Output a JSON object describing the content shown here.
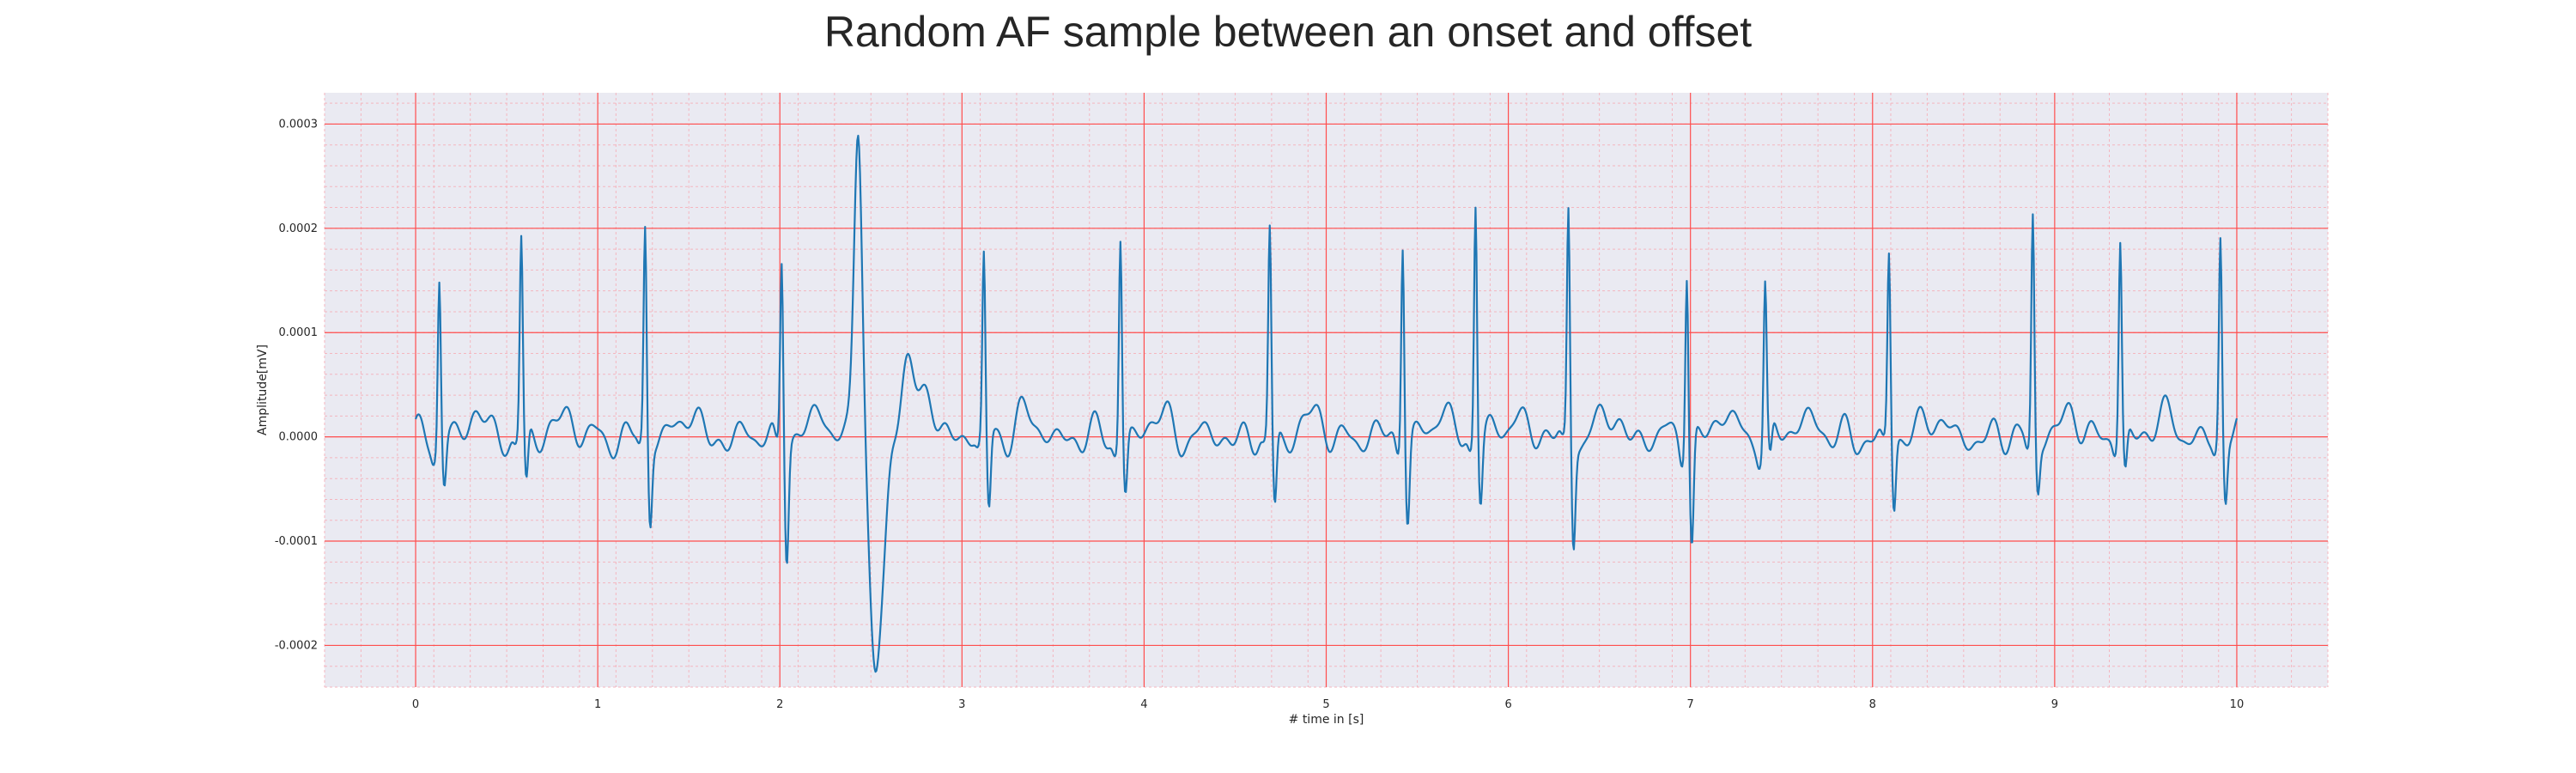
{
  "chart_data": {
    "type": "line",
    "title": "Random AF sample between an onset and offset",
    "xlabel": "# time in [s]",
    "ylabel": "Amplitude[mV]",
    "xlim": [
      -0.5,
      10.5
    ],
    "ylim": [
      -0.00024,
      0.00033
    ],
    "xticks": [
      0,
      1,
      2,
      3,
      4,
      5,
      6,
      7,
      8,
      9,
      10
    ],
    "xtick_labels": [
      "0",
      "1",
      "2",
      "3",
      "4",
      "5",
      "6",
      "7",
      "8",
      "9",
      "10"
    ],
    "yticks": [
      -0.0002,
      -0.0001,
      0.0,
      0.0001,
      0.0002,
      0.0003
    ],
    "ytick_labels": [
      "-0.0002",
      "-0.0001",
      "0.0000",
      "0.0001",
      "0.0002",
      "0.0003"
    ],
    "grid": true,
    "minor_grid": true,
    "plot_background": "#eaeaf2",
    "major_grid_color": "#ff4d4d",
    "minor_grid_color": "#f4b6bf",
    "line_color": "#1f77b4",
    "x_start": 0.0,
    "x_end": 10.0,
    "r_peaks": [
      {
        "t": 0.13,
        "peak": 0.000158,
        "trough": -4.5e-05
      },
      {
        "t": 0.58,
        "peak": 0.000183,
        "trough": -5.5e-05
      },
      {
        "t": 1.26,
        "peak": 0.000198,
        "trough": -7.8e-05
      },
      {
        "t": 2.01,
        "peak": 0.000178,
        "trough": -0.000107
      },
      {
        "t": 3.12,
        "peak": 0.00017,
        "trough": -7.5e-05
      },
      {
        "t": 3.87,
        "peak": 0.000196,
        "trough": -5.5e-05
      },
      {
        "t": 4.69,
        "peak": 0.000193,
        "trough": -7.3e-05
      },
      {
        "t": 5.42,
        "peak": 0.0002,
        "trough": -7.5e-05
      },
      {
        "t": 5.82,
        "peak": 0.000231,
        "trough": -6e-05
      },
      {
        "t": 6.33,
        "peak": 0.000219,
        "trough": -9.5e-05
      },
      {
        "t": 6.98,
        "peak": 0.000172,
        "trough": -0.000105
      },
      {
        "t": 7.41,
        "peak": 0.000147,
        "trough": -3.5e-05
      },
      {
        "t": 8.09,
        "peak": 0.000173,
        "trough": -7e-05
      },
      {
        "t": 8.88,
        "peak": 0.000217,
        "trough": -4.5e-05
      },
      {
        "t": 9.36,
        "peak": 0.000186,
        "trough": -4.2e-05
      },
      {
        "t": 9.91,
        "peak": 0.000191,
        "trough": -6e-05
      }
    ],
    "ectopic_beat": {
      "t_peak": 2.43,
      "peak": 0.000305,
      "t_trough": 2.52,
      "trough": -0.000218,
      "t_recovery_hump": 2.7,
      "recovery_hump": 8e-05
    }
  }
}
